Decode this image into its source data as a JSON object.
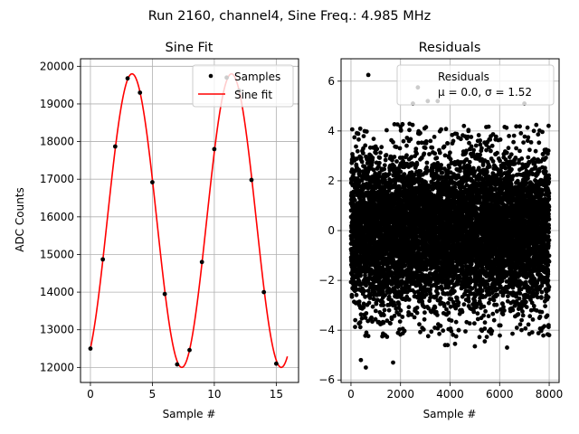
{
  "figure": {
    "suptitle": "Run 2160, channel4, Sine Freq.: 4.985 MHz"
  },
  "chart_data": [
    {
      "type": "line",
      "title": "Sine Fit",
      "xlabel": "Sample #",
      "ylabel": "ADC Counts",
      "xlim": [
        -0.8,
        16.8
      ],
      "ylim": [
        11600,
        20200
      ],
      "xticks": [
        0,
        5,
        10,
        15
      ],
      "yticks": [
        12000,
        13000,
        14000,
        15000,
        16000,
        17000,
        18000,
        19000,
        20000
      ],
      "grid": true,
      "legend": "top-right",
      "series": [
        {
          "name": "Samples",
          "kind": "scatter",
          "color": "#000000",
          "x": [
            0,
            1,
            2,
            3,
            4,
            5,
            6,
            7,
            8,
            9,
            10,
            11,
            12,
            13,
            14,
            15
          ],
          "y": [
            12500,
            14870,
            17870,
            19680,
            19300,
            16920,
            13950,
            12080,
            12460,
            14800,
            17800,
            19700,
            19350,
            16980,
            14000,
            12100
          ]
        },
        {
          "name": "Sine fit",
          "kind": "line",
          "color": "#ff0000",
          "function": {
            "offset": 15900,
            "amplitude": 3900,
            "period": 8.03,
            "phase_x": 1.35,
            "x_start": 0,
            "x_end": 15.9
          }
        }
      ]
    },
    {
      "type": "scatter",
      "title": "Residuals",
      "xlabel": "Sample #",
      "ylabel": "",
      "xlim": [
        -400,
        8400
      ],
      "ylim": [
        -6.1,
        6.9
      ],
      "xticks": [
        0,
        2000,
        4000,
        6000,
        8000
      ],
      "yticks": [
        -6,
        -4,
        -2,
        0,
        2,
        4,
        6
      ],
      "grid": true,
      "legend": "top-right",
      "legend_lines": [
        "Residuals",
        "μ = 0.0, σ = 1.52"
      ],
      "series": [
        {
          "name": "Residuals",
          "color": "#000000",
          "mean": 0.0,
          "std": 1.52,
          "count": 8000,
          "sample_points": {
            "x": [
              700,
              2700,
              3100,
              3500,
              2500,
              1700,
              400,
              3800,
              5000,
              7200,
              3900,
              4200,
              5400,
              6300,
              8000,
              600,
              7000
            ],
            "y": [
              6.25,
              5.75,
              5.2,
              5.2,
              5.1,
              -5.3,
              -5.2,
              -4.6,
              -4.65,
              -4.15,
              -4.6,
              -4.55,
              -4.45,
              -4.7,
              -4.2,
              -5.5,
              5.1
            ]
          }
        }
      ]
    }
  ]
}
